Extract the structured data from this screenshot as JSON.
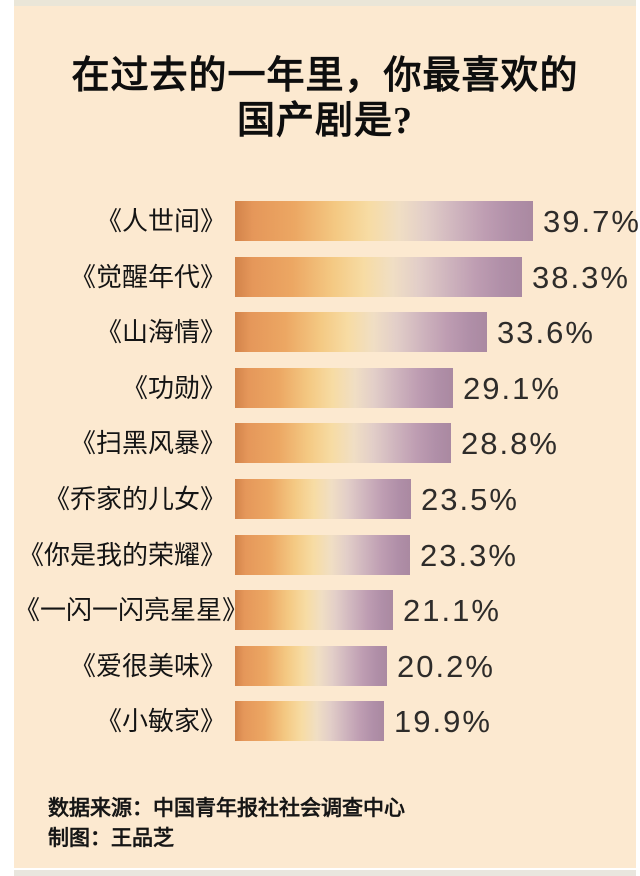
{
  "title": {
    "line1": "在过去的一年里，你最喜欢的",
    "line2": "国产剧是?"
  },
  "chart_data": {
    "type": "bar",
    "orientation": "horizontal",
    "title": "在过去的一年里，你最喜欢的国产剧是?",
    "categories": [
      "《人世间》",
      "《觉醒年代》",
      "《山海情》",
      "《功勋》",
      "《扫黑风暴》",
      "《乔家的儿女》",
      "《你是我的荣耀》",
      "《一闪一闪亮星星》",
      "《爱很美味》",
      "《小敏家》"
    ],
    "values": [
      39.7,
      38.3,
      33.6,
      29.1,
      28.8,
      23.5,
      23.3,
      21.1,
      20.2,
      19.9
    ],
    "value_labels": [
      "39.7%",
      "38.3%",
      "33.6%",
      "29.1%",
      "28.8%",
      "23.5%",
      "23.3%",
      "21.1%",
      "20.2%",
      "19.9%"
    ],
    "unit": "%",
    "xlim": [
      0,
      40
    ],
    "grid": false,
    "legend": false,
    "bar_gradient": {
      "start": "#D2834A",
      "middle": "#F7DCA4",
      "end": "#AA89A1"
    }
  },
  "footer": {
    "source": "数据来源：中国青年报社社会调查中心",
    "credit": "制图：王品芝"
  },
  "colors": {
    "page_background": "#FFFFFF",
    "card_background": "#FCE9D0",
    "top_strip": "#EAE6D8",
    "bottom_strip": "#E9E6DE",
    "title_text": "#0E0E0E",
    "category_text": "#141414",
    "value_text": "#2E2C2A",
    "footer_text": "#161616"
  }
}
